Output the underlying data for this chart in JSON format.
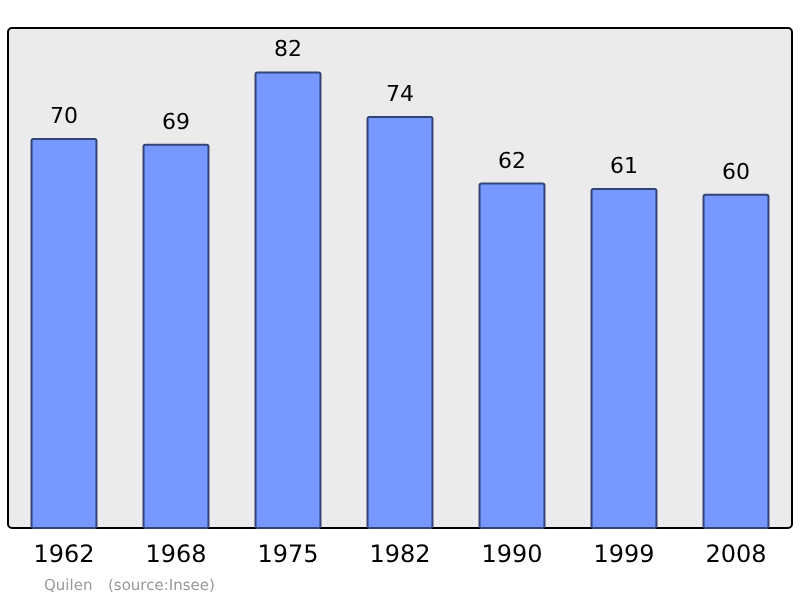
{
  "chart_data": {
    "type": "bar",
    "categories": [
      "1962",
      "1968",
      "1975",
      "1982",
      "1990",
      "1999",
      "2008"
    ],
    "values": [
      70,
      69,
      82,
      74,
      62,
      61,
      60
    ],
    "color": "#7799ff",
    "ylim": [
      0,
      90
    ],
    "data_labels": true,
    "tick_labels": "x",
    "annotations": [
      "Quilen",
      "(source:Insee)"
    ]
  }
}
